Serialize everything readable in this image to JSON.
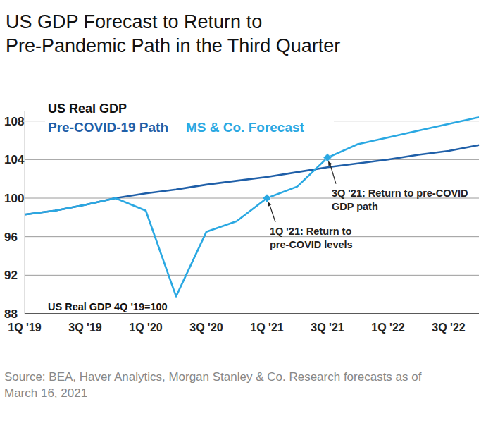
{
  "chart_data": {
    "type": "line",
    "title": [
      "US GDP Forecast to Return to",
      "Pre-Pandemic Path in the Third Quarter"
    ],
    "legend_title": "US Real GDP",
    "axis_note": "US Real GDP 4Q '19=100",
    "source": [
      "Source: BEA, Haver Analytics, Morgan Stanley & Co. Research forecasts as of",
      "March 16, 2021"
    ],
    "categories": [
      "1Q '19",
      null,
      "3Q '19",
      null,
      "1Q '20",
      null,
      "3Q '20",
      null,
      "1Q '21",
      null,
      "3Q '21",
      null,
      "1Q '22",
      null,
      "3Q '22",
      null
    ],
    "series": [
      {
        "name": "Pre-COVID-19 Path",
        "color": "#1f5fa8",
        "values": [
          98.3,
          98.7,
          99.3,
          100,
          100.5,
          100.9,
          101.4,
          101.8,
          102.2,
          102.7,
          103.2,
          103.6,
          104.0,
          104.5,
          104.9,
          105.5
        ]
      },
      {
        "name": "MS & Co. Forecast",
        "color": "#2aa8e2",
        "values": [
          98.3,
          98.7,
          99.3,
          100,
          98.7,
          89.8,
          96.5,
          97.6,
          100,
          101.2,
          104.2,
          105.6,
          106.3,
          107.0,
          107.7,
          108.4
        ]
      }
    ],
    "annotations": [
      {
        "category": "1Q '21",
        "text": [
          "1Q '21: Return to",
          "pre-COVID levels"
        ]
      },
      {
        "category": "3Q '21",
        "text": [
          "3Q '21: Return to pre-COVID",
          "GDP path"
        ]
      }
    ],
    "ylim": [
      88,
      109
    ],
    "yticks": [
      88,
      92,
      96,
      100,
      104,
      108
    ],
    "grid": true,
    "legend": "top-left"
  }
}
